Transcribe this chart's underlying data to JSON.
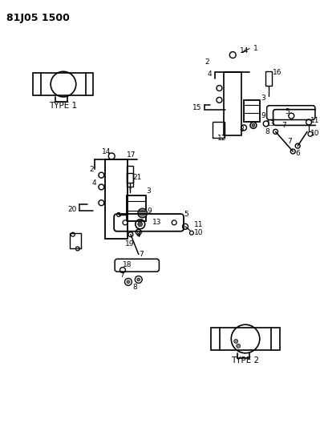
{
  "title": "81J05 1500",
  "bg_color": "#ffffff",
  "line_color": "#000000",
  "text_color": "#000000",
  "type1_label": "TYPE 1",
  "type2_label": "TYPE 2",
  "figsize": [
    3.99,
    5.33
  ],
  "dpi": 100
}
